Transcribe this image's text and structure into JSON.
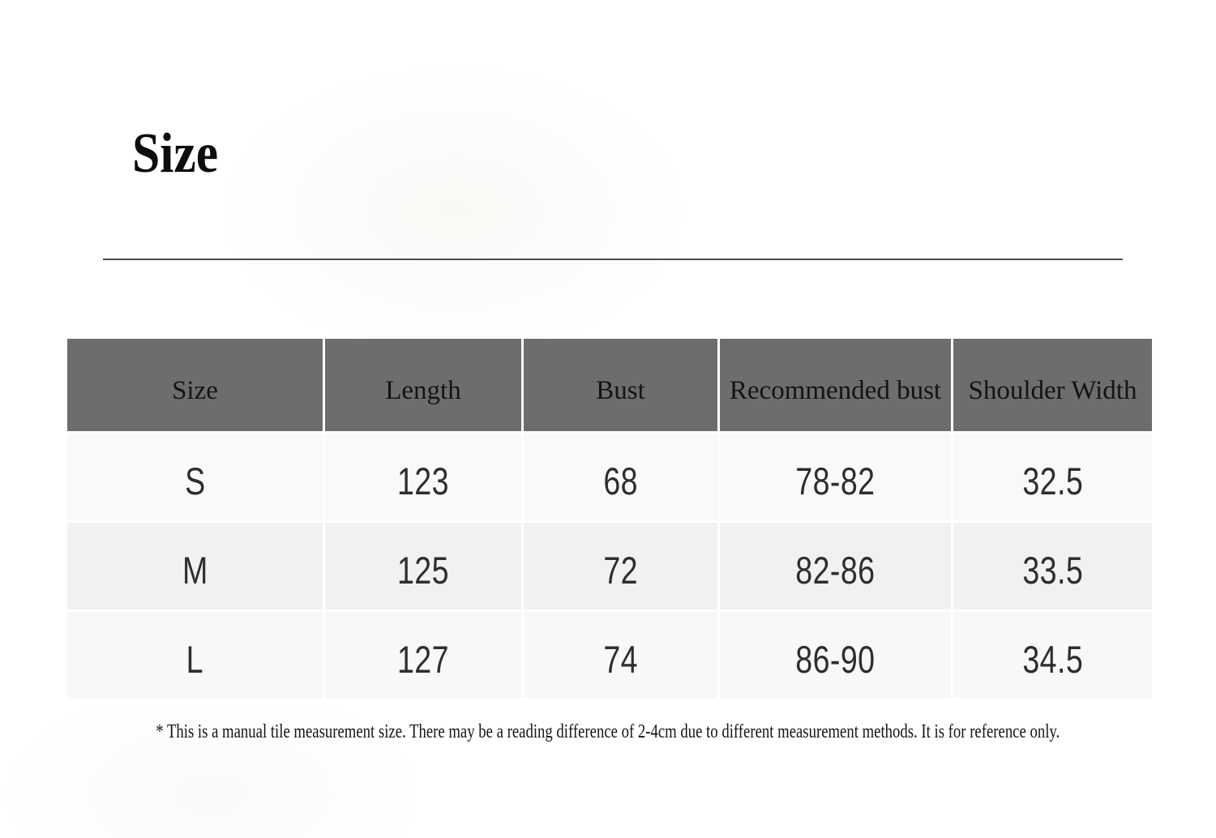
{
  "page": {
    "title": "Size",
    "footnote": "* This is a manual tile measurement size. There may be a reading difference of 2-4cm due to different measurement methods. It is for reference only."
  },
  "size_table": {
    "columns": [
      "Size",
      "Length",
      "Bust",
      "Recommended bust",
      "Shoulder Width"
    ],
    "rows": [
      [
        "S",
        "123",
        "68",
        "78-82",
        "32.5"
      ],
      [
        "M",
        "125",
        "72",
        "82-86",
        "33.5"
      ],
      [
        "L",
        "127",
        "74",
        "86-90",
        "34.5"
      ]
    ]
  },
  "colors": {
    "header_bg": "#6d6d6d",
    "header_text": "#141414",
    "body_text": "#2e2e2e",
    "row_light_bg": "#f8f9f9",
    "row_dark_bg": "#f0f1f1",
    "row_light2_bg": "#f7f8f8",
    "divider": "#4d4d4d"
  }
}
